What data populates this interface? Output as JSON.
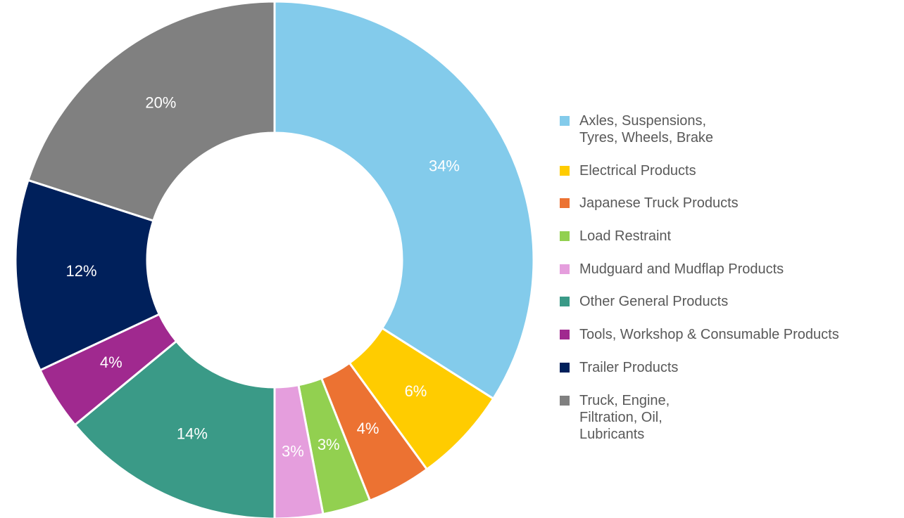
{
  "chart_data": {
    "type": "donut",
    "categories": [
      "Axles, Suspensions, Tyres, Wheels, Brake",
      "Electrical Products",
      "Japanese Truck Products",
      "Load Restraint",
      "Mudguard and Mudflap Products",
      "Other General Products",
      "Tools, Workshop & Consumable Products",
      "Trailer Products",
      "Truck, Engine, Filtration, Oil, Lubricants"
    ],
    "values": [
      34,
      6,
      4,
      3,
      3,
      14,
      4,
      12,
      20
    ],
    "value_labels": [
      "34%",
      "6%",
      "4%",
      "3%",
      "3%",
      "14%",
      "4%",
      "12%",
      "20%"
    ],
    "colors": [
      "#83cbeb",
      "#ffcc00",
      "#ec7232",
      "#92d050",
      "#e59edd",
      "#3a9a87",
      "#a0298f",
      "#00205b",
      "#808080"
    ],
    "legend": "right"
  }
}
